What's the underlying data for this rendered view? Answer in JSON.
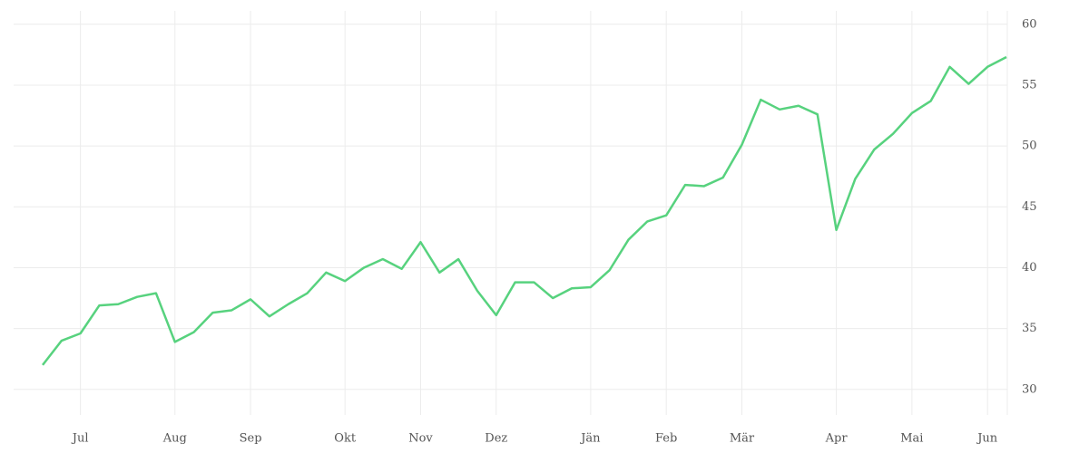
{
  "chart_data": {
    "type": "line",
    "categories": [
      null,
      null,
      "Jul",
      null,
      null,
      null,
      null,
      "Aug",
      null,
      null,
      null,
      "Sep",
      null,
      null,
      null,
      null,
      "Okt",
      null,
      null,
      null,
      "Nov",
      null,
      null,
      null,
      "Dez",
      null,
      null,
      null,
      null,
      "Jän",
      null,
      null,
      null,
      "Feb",
      null,
      null,
      null,
      "Mär",
      null,
      null,
      null,
      null,
      "Apr",
      null,
      null,
      null,
      "Mai",
      null,
      null,
      null,
      "Jun",
      null
    ],
    "series": [
      {
        "color": "#57d27e",
        "values": [
          32.0,
          34.0,
          34.6,
          36.9,
          37.0,
          37.6,
          37.9,
          33.9,
          34.7,
          36.3,
          36.5,
          37.4,
          36.0,
          37.0,
          37.9,
          39.6,
          38.9,
          40.0,
          40.7,
          39.9,
          42.1,
          39.6,
          40.7,
          38.1,
          36.1,
          38.8,
          38.8,
          37.5,
          38.3,
          38.4,
          39.8,
          42.3,
          43.8,
          44.3,
          46.8,
          46.7,
          47.4,
          50.1,
          53.8,
          53.0,
          53.3,
          52.6,
          43.1,
          47.3,
          49.7,
          51.0,
          52.7,
          53.7,
          56.5,
          55.1,
          56.5,
          57.3
        ]
      }
    ],
    "ylim": [
      27.9,
      61.1
    ],
    "yticks": [
      30,
      35,
      40,
      45,
      50,
      55,
      60
    ],
    "grid": true
  }
}
